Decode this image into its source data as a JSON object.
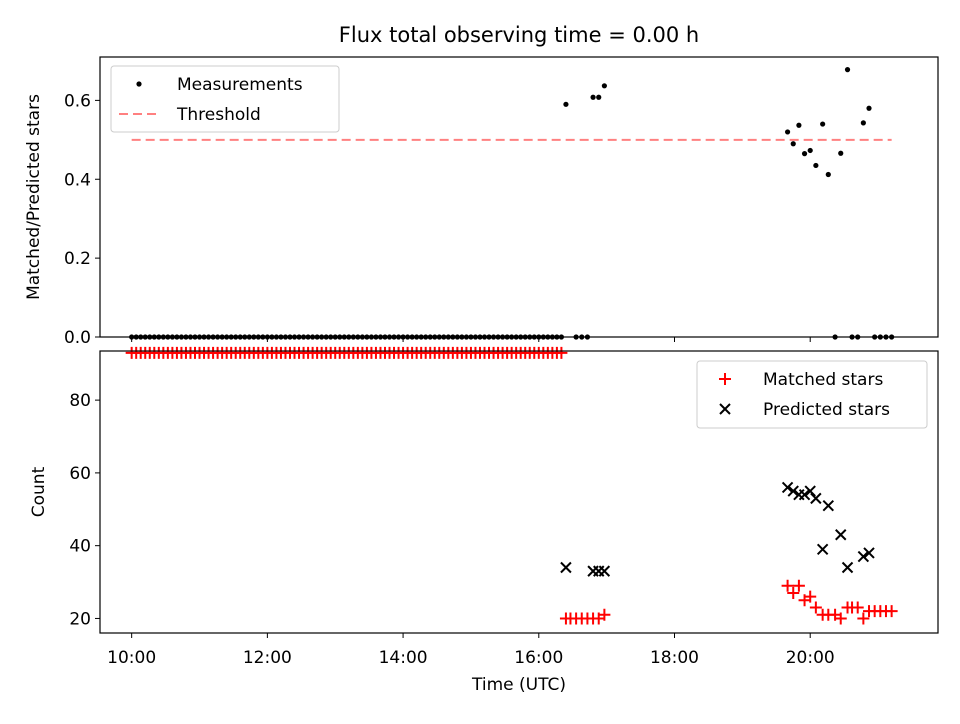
{
  "chart_data": [
    {
      "type": "scatter",
      "title": "Flux total observing time = 0.00 h",
      "xlabel": "",
      "ylabel": "Matched/Predicted stars",
      "xlim": [
        "09:32",
        "21:53"
      ],
      "ylim": [
        0,
        0.71
      ],
      "yticks": [
        "0.0",
        "0.2",
        "0.4",
        "0.6"
      ],
      "legend": {
        "position": "top-left",
        "entries": [
          "Measurements",
          "Threshold"
        ]
      },
      "threshold": {
        "name": "Threshold",
        "value": 0.5,
        "x_start": "10:00",
        "x_end": "21:12",
        "color": "#ff8080"
      },
      "series": [
        {
          "name": "Measurements",
          "color": "#000000",
          "points": [
            [
              "10:00",
              0
            ],
            [
              "10:04",
              0
            ],
            [
              "10:08",
              0
            ],
            [
              "10:12",
              0
            ],
            [
              "10:16",
              0
            ],
            [
              "10:20",
              0
            ],
            [
              "10:24",
              0
            ],
            [
              "10:28",
              0
            ],
            [
              "10:32",
              0
            ],
            [
              "10:36",
              0
            ],
            [
              "10:40",
              0
            ],
            [
              "10:44",
              0
            ],
            [
              "10:48",
              0
            ],
            [
              "10:52",
              0
            ],
            [
              "10:56",
              0
            ],
            [
              "11:00",
              0
            ],
            [
              "11:04",
              0
            ],
            [
              "11:08",
              0
            ],
            [
              "11:12",
              0
            ],
            [
              "11:16",
              0
            ],
            [
              "11:20",
              0
            ],
            [
              "11:24",
              0
            ],
            [
              "11:28",
              0
            ],
            [
              "11:32",
              0
            ],
            [
              "11:36",
              0
            ],
            [
              "11:40",
              0
            ],
            [
              "11:44",
              0
            ],
            [
              "11:48",
              0
            ],
            [
              "11:52",
              0
            ],
            [
              "11:56",
              0
            ],
            [
              "12:00",
              0
            ],
            [
              "12:04",
              0
            ],
            [
              "12:08",
              0
            ],
            [
              "12:12",
              0
            ],
            [
              "12:16",
              0
            ],
            [
              "12:20",
              0
            ],
            [
              "12:24",
              0
            ],
            [
              "12:28",
              0
            ],
            [
              "12:32",
              0
            ],
            [
              "12:36",
              0
            ],
            [
              "12:40",
              0
            ],
            [
              "12:44",
              0
            ],
            [
              "12:48",
              0
            ],
            [
              "12:52",
              0
            ],
            [
              "12:56",
              0
            ],
            [
              "13:00",
              0
            ],
            [
              "13:04",
              0
            ],
            [
              "13:08",
              0
            ],
            [
              "13:12",
              0
            ],
            [
              "13:16",
              0
            ],
            [
              "13:20",
              0
            ],
            [
              "13:24",
              0
            ],
            [
              "13:28",
              0
            ],
            [
              "13:32",
              0
            ],
            [
              "13:36",
              0
            ],
            [
              "13:40",
              0
            ],
            [
              "13:44",
              0
            ],
            [
              "13:48",
              0
            ],
            [
              "13:52",
              0
            ],
            [
              "13:56",
              0
            ],
            [
              "14:00",
              0
            ],
            [
              "14:04",
              0
            ],
            [
              "14:08",
              0
            ],
            [
              "14:12",
              0
            ],
            [
              "14:16",
              0
            ],
            [
              "14:20",
              0
            ],
            [
              "14:24",
              0
            ],
            [
              "14:28",
              0
            ],
            [
              "14:32",
              0
            ],
            [
              "14:36",
              0
            ],
            [
              "14:40",
              0
            ],
            [
              "14:44",
              0
            ],
            [
              "14:48",
              0
            ],
            [
              "14:52",
              0
            ],
            [
              "14:56",
              0
            ],
            [
              "15:00",
              0
            ],
            [
              "15:04",
              0
            ],
            [
              "15:08",
              0
            ],
            [
              "15:12",
              0
            ],
            [
              "15:16",
              0
            ],
            [
              "15:20",
              0
            ],
            [
              "15:24",
              0
            ],
            [
              "15:28",
              0
            ],
            [
              "15:32",
              0
            ],
            [
              "15:36",
              0
            ],
            [
              "15:40",
              0
            ],
            [
              "15:44",
              0
            ],
            [
              "15:48",
              0
            ],
            [
              "15:52",
              0
            ],
            [
              "15:56",
              0
            ],
            [
              "16:00",
              0
            ],
            [
              "16:04",
              0
            ],
            [
              "16:08",
              0
            ],
            [
              "16:12",
              0
            ],
            [
              "16:16",
              0
            ],
            [
              "16:20",
              0
            ],
            [
              "16:24",
              0.59
            ],
            [
              "16:33",
              0
            ],
            [
              "16:38",
              0
            ],
            [
              "16:43",
              0
            ],
            [
              "16:48",
              0.608
            ],
            [
              "16:53",
              0.608
            ],
            [
              "16:58",
              0.637
            ],
            [
              "19:40",
              0.52
            ],
            [
              "19:45",
              0.49
            ],
            [
              "19:50",
              0.537
            ],
            [
              "19:55",
              0.465
            ],
            [
              "20:00",
              0.473
            ],
            [
              "20:05",
              0.435
            ],
            [
              "20:11",
              0.54
            ],
            [
              "20:16",
              0.412
            ],
            [
              "20:22",
              0
            ],
            [
              "20:27",
              0.466
            ],
            [
              "20:33",
              0.678
            ],
            [
              "20:37",
              0
            ],
            [
              "20:42",
              0
            ],
            [
              "20:47",
              0.543
            ],
            [
              "20:52",
              0.58
            ],
            [
              "20:57",
              0
            ],
            [
              "21:02",
              0
            ],
            [
              "21:07",
              0
            ],
            [
              "21:12",
              0
            ]
          ]
        }
      ]
    },
    {
      "type": "scatter",
      "title": "",
      "xlabel": "Time (UTC)",
      "ylabel": "Count",
      "xlim": [
        "09:32",
        "21:53"
      ],
      "ylim": [
        16,
        93.5
      ],
      "xticks": [
        "10:00",
        "12:00",
        "14:00",
        "16:00",
        "18:00",
        "20:00"
      ],
      "yticks": [
        "20",
        "40",
        "60",
        "80"
      ],
      "legend": {
        "position": "top-right",
        "entries": [
          "Matched stars",
          "Predicted stars"
        ]
      },
      "series": [
        {
          "name": "Matched stars",
          "marker": "plus",
          "color": "#ff0000",
          "points": [
            [
              "10:00",
              93
            ],
            [
              "10:04",
              93
            ],
            [
              "10:08",
              93
            ],
            [
              "10:12",
              93
            ],
            [
              "10:16",
              93
            ],
            [
              "10:20",
              93
            ],
            [
              "10:24",
              93
            ],
            [
              "10:28",
              93
            ],
            [
              "10:32",
              93
            ],
            [
              "10:36",
              93
            ],
            [
              "10:40",
              93
            ],
            [
              "10:44",
              93
            ],
            [
              "10:48",
              93
            ],
            [
              "10:52",
              93
            ],
            [
              "10:56",
              93
            ],
            [
              "11:00",
              93
            ],
            [
              "11:04",
              93
            ],
            [
              "11:08",
              93
            ],
            [
              "11:12",
              93
            ],
            [
              "11:16",
              93
            ],
            [
              "11:20",
              93
            ],
            [
              "11:24",
              93
            ],
            [
              "11:28",
              93
            ],
            [
              "11:32",
              93
            ],
            [
              "11:36",
              93
            ],
            [
              "11:40",
              93
            ],
            [
              "11:44",
              93
            ],
            [
              "11:48",
              93
            ],
            [
              "11:52",
              93
            ],
            [
              "11:56",
              93
            ],
            [
              "12:00",
              93
            ],
            [
              "12:04",
              93
            ],
            [
              "12:08",
              93
            ],
            [
              "12:12",
              93
            ],
            [
              "12:16",
              93
            ],
            [
              "12:20",
              93
            ],
            [
              "12:24",
              93
            ],
            [
              "12:28",
              93
            ],
            [
              "12:32",
              93
            ],
            [
              "12:36",
              93
            ],
            [
              "12:40",
              93
            ],
            [
              "12:44",
              93
            ],
            [
              "12:48",
              93
            ],
            [
              "12:52",
              93
            ],
            [
              "12:56",
              93
            ],
            [
              "13:00",
              93
            ],
            [
              "13:04",
              93
            ],
            [
              "13:08",
              93
            ],
            [
              "13:12",
              93
            ],
            [
              "13:16",
              93
            ],
            [
              "13:20",
              93
            ],
            [
              "13:24",
              93
            ],
            [
              "13:28",
              93
            ],
            [
              "13:32",
              93
            ],
            [
              "13:36",
              93
            ],
            [
              "13:40",
              93
            ],
            [
              "13:44",
              93
            ],
            [
              "13:48",
              93
            ],
            [
              "13:52",
              93
            ],
            [
              "13:56",
              93
            ],
            [
              "14:00",
              93
            ],
            [
              "14:04",
              93
            ],
            [
              "14:08",
              93
            ],
            [
              "14:12",
              93
            ],
            [
              "14:16",
              93
            ],
            [
              "14:20",
              93
            ],
            [
              "14:24",
              93
            ],
            [
              "14:28",
              93
            ],
            [
              "14:32",
              93
            ],
            [
              "14:36",
              93
            ],
            [
              "14:40",
              93
            ],
            [
              "14:44",
              93
            ],
            [
              "14:48",
              93
            ],
            [
              "14:52",
              93
            ],
            [
              "14:56",
              93
            ],
            [
              "15:00",
              93
            ],
            [
              "15:04",
              93
            ],
            [
              "15:08",
              93
            ],
            [
              "15:12",
              93
            ],
            [
              "15:16",
              93
            ],
            [
              "15:20",
              93
            ],
            [
              "15:24",
              93
            ],
            [
              "15:28",
              93
            ],
            [
              "15:32",
              93
            ],
            [
              "15:36",
              93
            ],
            [
              "15:40",
              93
            ],
            [
              "15:44",
              93
            ],
            [
              "15:48",
              93
            ],
            [
              "15:52",
              93
            ],
            [
              "15:56",
              93
            ],
            [
              "16:00",
              93
            ],
            [
              "16:04",
              93
            ],
            [
              "16:08",
              93
            ],
            [
              "16:12",
              93
            ],
            [
              "16:16",
              93
            ],
            [
              "16:20",
              93
            ],
            [
              "16:24",
              20
            ],
            [
              "16:28",
              20
            ],
            [
              "16:33",
              20
            ],
            [
              "16:38",
              20
            ],
            [
              "16:43",
              20
            ],
            [
              "16:48",
              20
            ],
            [
              "16:53",
              20
            ],
            [
              "16:58",
              21
            ],
            [
              "19:40",
              29
            ],
            [
              "19:45",
              27
            ],
            [
              "19:50",
              29
            ],
            [
              "19:55",
              25
            ],
            [
              "20:00",
              26
            ],
            [
              "20:05",
              23
            ],
            [
              "20:11",
              21
            ],
            [
              "20:16",
              21
            ],
            [
              "20:22",
              21
            ],
            [
              "20:27",
              20
            ],
            [
              "20:33",
              23
            ],
            [
              "20:37",
              23
            ],
            [
              "20:42",
              23
            ],
            [
              "20:47",
              20
            ],
            [
              "20:52",
              22
            ],
            [
              "20:57",
              22
            ],
            [
              "21:02",
              22
            ],
            [
              "21:07",
              22
            ],
            [
              "21:12",
              22
            ]
          ]
        },
        {
          "name": "Predicted stars",
          "marker": "x",
          "color": "#000000",
          "points": [
            [
              "16:24",
              34
            ],
            [
              "16:48",
              33
            ],
            [
              "16:53",
              33
            ],
            [
              "16:58",
              33
            ],
            [
              "19:40",
              56
            ],
            [
              "19:45",
              55
            ],
            [
              "19:50",
              54
            ],
            [
              "19:55",
              54
            ],
            [
              "20:00",
              55
            ],
            [
              "20:05",
              53
            ],
            [
              "20:11",
              39
            ],
            [
              "20:16",
              51
            ],
            [
              "20:27",
              43
            ],
            [
              "20:33",
              34
            ],
            [
              "20:47",
              37
            ],
            [
              "20:52",
              38
            ]
          ]
        }
      ]
    }
  ]
}
